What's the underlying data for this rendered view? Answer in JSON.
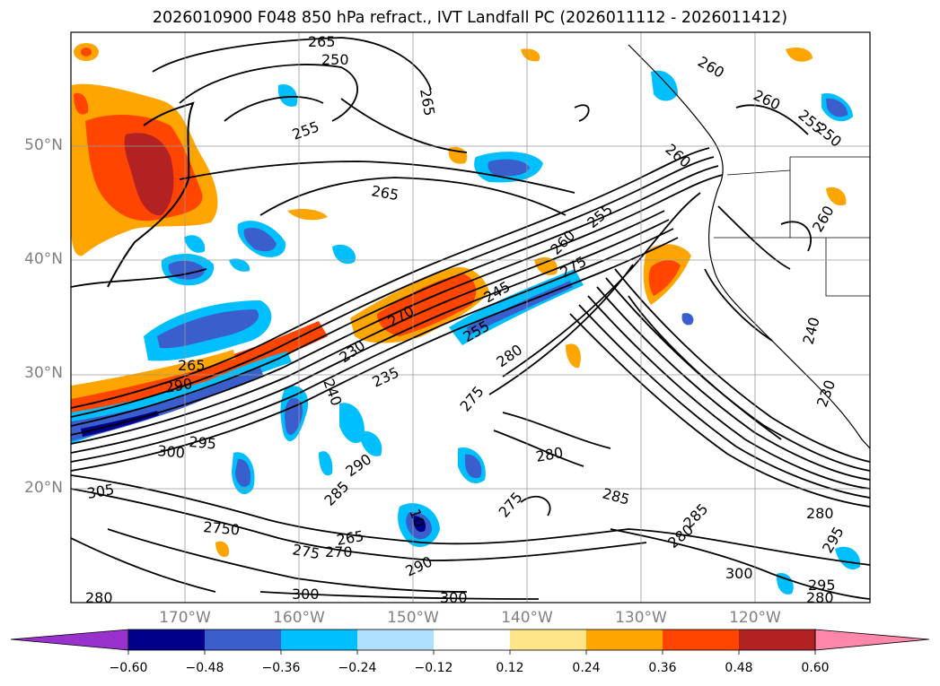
{
  "title": "2026010900 F048 850 hPa refract., IVT Landfall PC (2026011112 - 2026011412)",
  "longitude_labels": [
    "170°W",
    "160°W",
    "150°W",
    "140°W",
    "130°W",
    "120°W"
  ],
  "latitude_labels": [
    "50°N",
    "40°N",
    "30°N",
    "20°N"
  ],
  "contour_labels": [
    "265",
    "250",
    "255",
    "265",
    "260",
    "250",
    "255",
    "260",
    "255",
    "260",
    "265",
    "260",
    "275",
    "245",
    "270",
    "255",
    "280",
    "230",
    "235",
    "275",
    "240",
    "265",
    "290",
    "295",
    "300",
    "290",
    "280",
    "275",
    "285",
    "305",
    "285",
    "265",
    "275",
    "270",
    "2750",
    "290",
    "300",
    "300",
    "280",
    "285",
    "280",
    "295",
    "300",
    "295",
    "280",
    "10",
    "240",
    "230",
    "260",
    "280"
  ],
  "colorbar": {
    "tick_labels": [
      "−0.60",
      "−0.48",
      "−0.36",
      "−0.24",
      "−0.12",
      "0.12",
      "0.24",
      "0.36",
      "0.48",
      "0.60"
    ],
    "colors": [
      "#9932cc",
      "#00008b",
      "#3a5fcd",
      "#00bfff",
      "#b0e0ff",
      "#ffffff",
      "#ffe58a",
      "#ffa500",
      "#ff4500",
      "#b22222",
      "#ff88aa"
    ]
  }
}
